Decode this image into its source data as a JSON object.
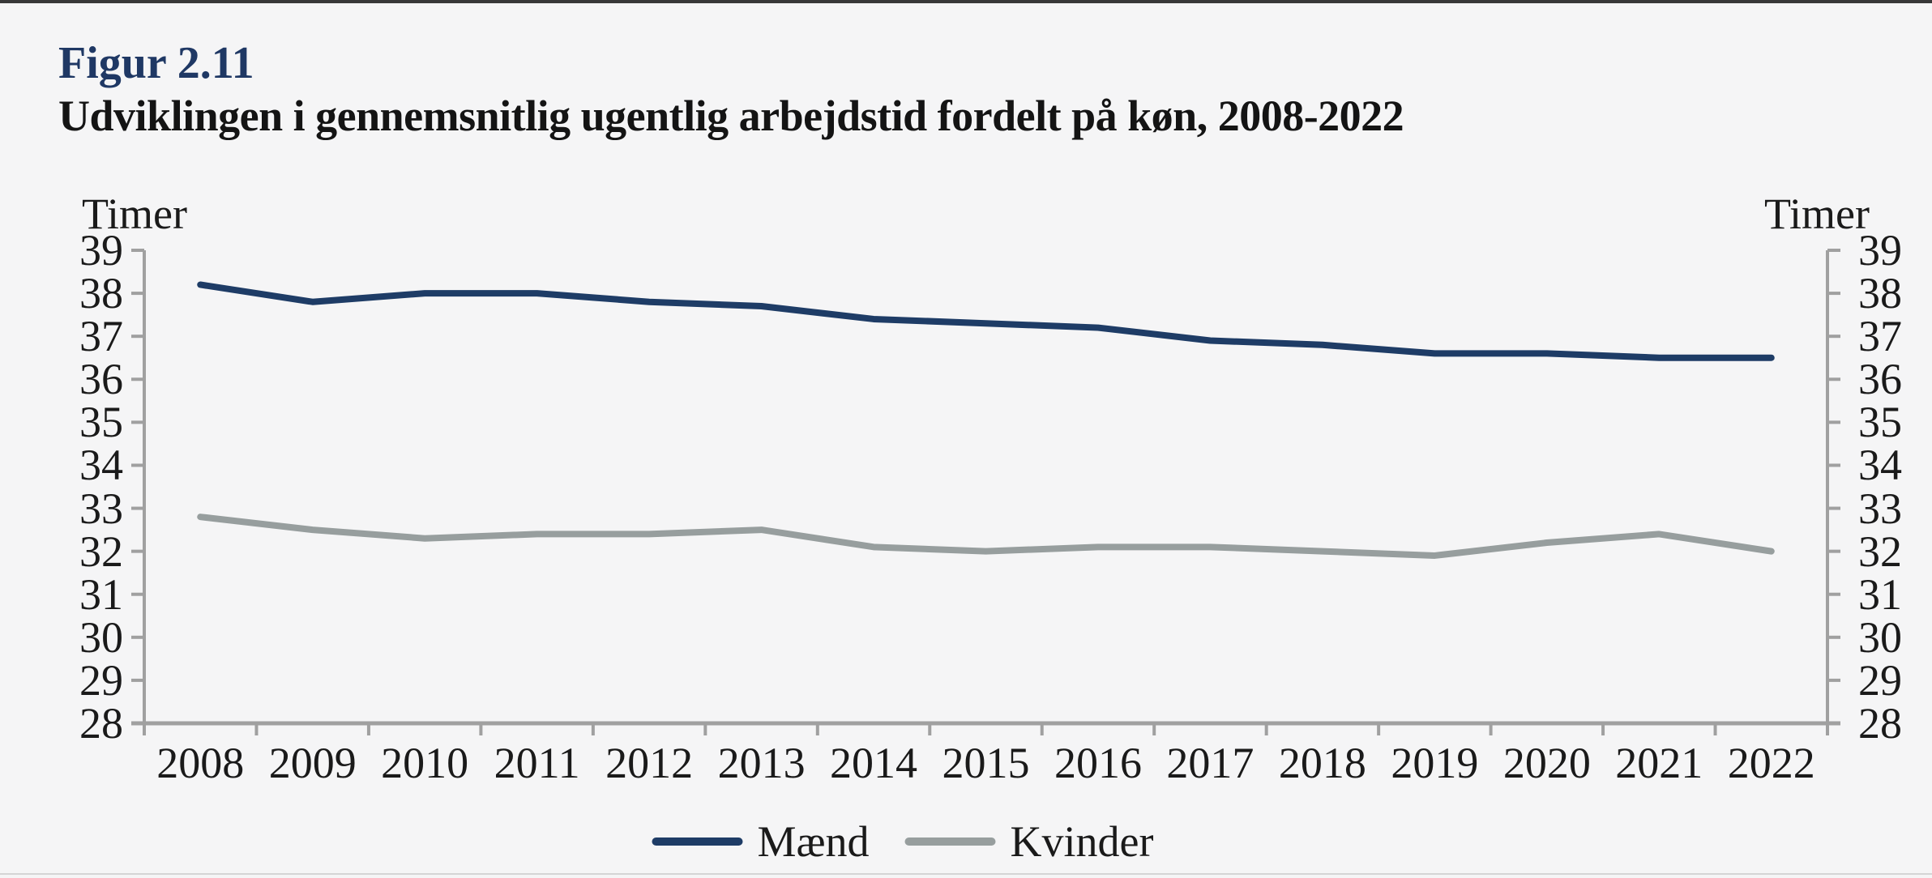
{
  "window": {
    "background": "#F5F5F6",
    "top_border_color": "#383838",
    "bottom_divider_color": "#D5D5D5"
  },
  "header": {
    "figure_label": "Figur 2.11",
    "figure_label_color": "#1F3864",
    "title": "Udviklingen i gennemsnitlig ugentlig arbejdstid fordelt på køn, 2008-2022"
  },
  "chart_data": {
    "type": "line",
    "title": "Udviklingen i gennemsnitlig ugentlig arbejdstid fordelt på køn, 2008-2022",
    "categories": [
      "2008",
      "2009",
      "2010",
      "2011",
      "2012",
      "2013",
      "2014",
      "2015",
      "2016",
      "2017",
      "2018",
      "2019",
      "2020",
      "2021",
      "2022"
    ],
    "series": [
      {
        "name": "Mænd",
        "color": "#1E3C66",
        "values": [
          38.2,
          37.8,
          38.0,
          38.0,
          37.8,
          37.7,
          37.4,
          37.3,
          37.2,
          36.9,
          36.8,
          36.6,
          36.6,
          36.5,
          36.5
        ]
      },
      {
        "name": "Kvinder",
        "color": "#979E9E",
        "values": [
          32.8,
          32.5,
          32.3,
          32.4,
          32.4,
          32.5,
          32.1,
          32.0,
          32.1,
          32.1,
          32.0,
          31.9,
          32.2,
          32.4,
          32.0
        ]
      }
    ],
    "ylabel_left": "Timer",
    "ylabel_right": "Timer",
    "ylim": [
      28,
      39
    ],
    "y_ticks": [
      39,
      38,
      37,
      36,
      35,
      34,
      33,
      32,
      31,
      30,
      29,
      28
    ],
    "grid": false,
    "legend_position": "bottom",
    "axis_color": "#A0A0A0"
  }
}
